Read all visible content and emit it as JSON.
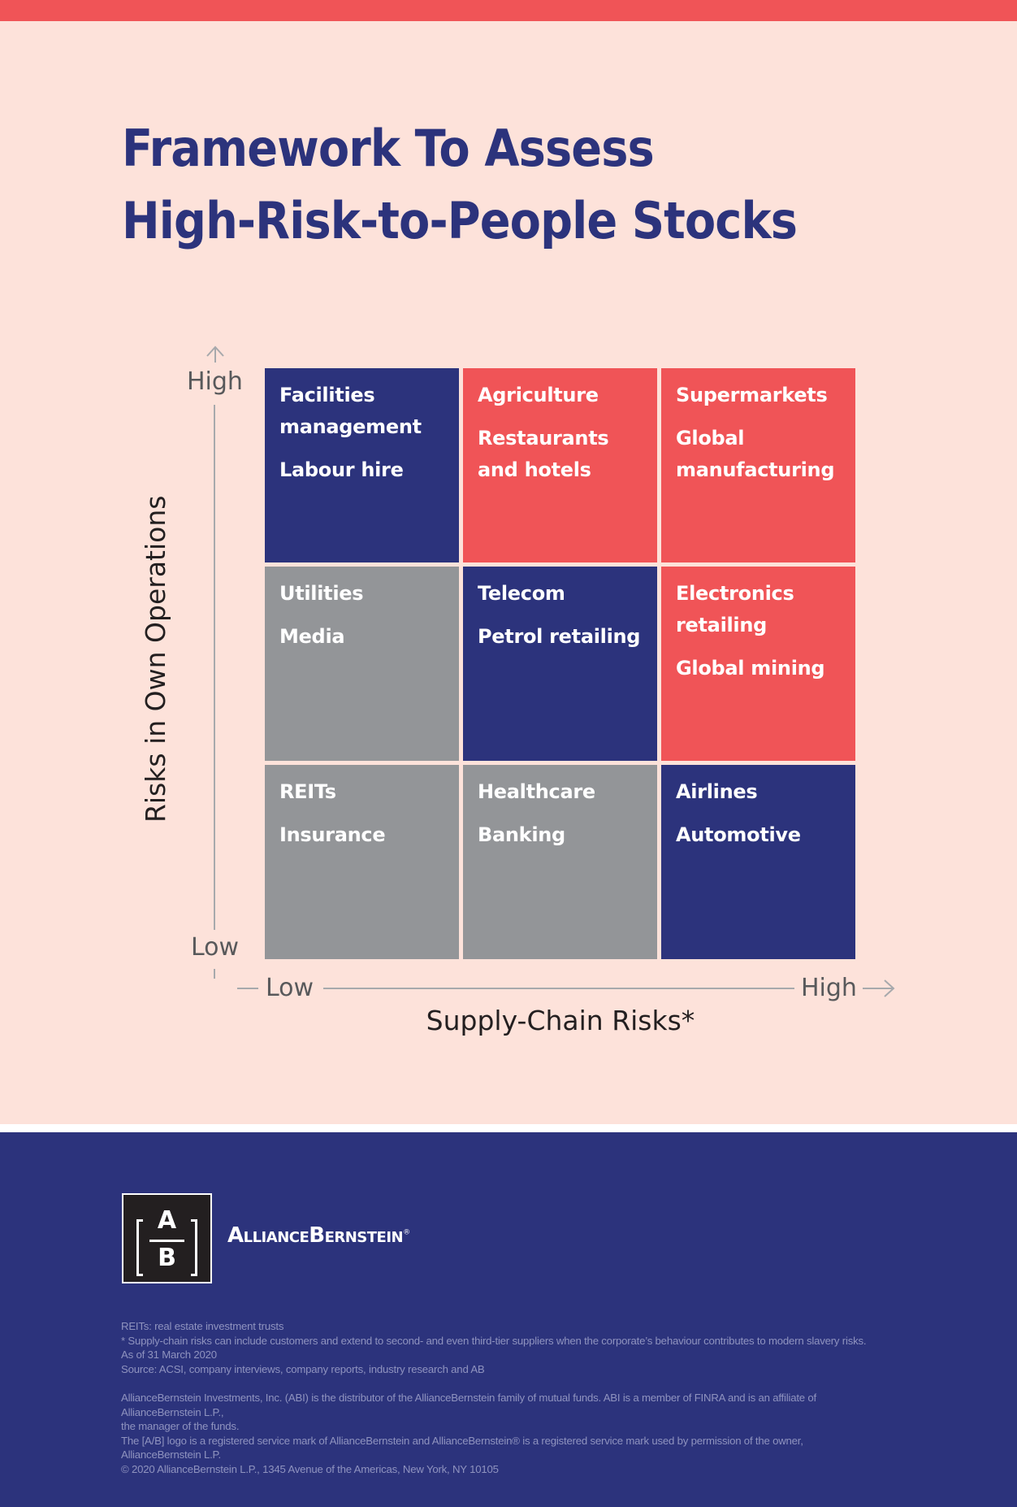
{
  "title": {
    "line1": "Framework To Assess",
    "line2": "High-Risk-to-People Stocks"
  },
  "colors": {
    "top_bar": "#f05457",
    "background": "#fde2da",
    "navy": "#2c337c",
    "high_risk_red": "#f05457",
    "medium_navy": "#2c337c",
    "low_grey": "#939598",
    "axis_grey": "#a7a9ac"
  },
  "y_axis": {
    "label": "Risks in Own Operations",
    "high": "High",
    "low": "Low"
  },
  "x_axis": {
    "label": "Supply-Chain Risks*",
    "low": "Low",
    "high": "High"
  },
  "matrix": {
    "rows": [
      {
        "own_operations_risk": "High",
        "cells": [
          {
            "supply_chain_risk": "Low",
            "color": "navy",
            "items": [
              "Facilities management",
              "Labour hire"
            ]
          },
          {
            "supply_chain_risk": "Medium",
            "color": "red",
            "items": [
              "Agriculture",
              "Restaurants and hotels"
            ]
          },
          {
            "supply_chain_risk": "High",
            "color": "red",
            "items": [
              "Supermarkets",
              "Global manufacturing"
            ]
          }
        ]
      },
      {
        "own_operations_risk": "Medium",
        "cells": [
          {
            "supply_chain_risk": "Low",
            "color": "grey",
            "items": [
              "Utilities",
              "Media"
            ]
          },
          {
            "supply_chain_risk": "Medium",
            "color": "navy",
            "items": [
              "Telecom",
              "Petrol retailing"
            ]
          },
          {
            "supply_chain_risk": "High",
            "color": "red",
            "items": [
              "Electronics retailing",
              "Global mining"
            ]
          }
        ]
      },
      {
        "own_operations_risk": "Low",
        "cells": [
          {
            "supply_chain_risk": "Low",
            "color": "grey",
            "items": [
              "REITs",
              "Insurance"
            ]
          },
          {
            "supply_chain_risk": "Medium",
            "color": "grey",
            "items": [
              "Healthcare",
              "Banking"
            ]
          },
          {
            "supply_chain_risk": "High",
            "color": "navy",
            "items": [
              "Airlines",
              "Automotive"
            ]
          }
        ]
      }
    ]
  },
  "logo": {
    "top_letter": "A",
    "bottom_letter": "B",
    "brand_name": "AllianceBernstein",
    "registered": "®"
  },
  "footnotes": {
    "notes": [
      "REITs: real estate investment trusts",
      "* Supply-chain risks can include customers and extend to second- and even third-tier suppliers when the corporate’s behaviour contributes to modern slavery risks.",
      "As of 31 March 2020",
      "Source: ACSI, company interviews, company reports, industry research and AB"
    ],
    "disclosures": [
      "AllianceBernstein Investments, Inc. (ABI) is the distributor of the AllianceBernstein family of mutual funds. ABI is a member of FINRA and is an affiliate of",
      "AllianceBernstein L.P.,",
      "the manager of the funds.",
      "The [A/B] logo is a registered service mark of AllianceBernstein and AllianceBernstein® is a registered service mark used by permission of the owner,",
      "AllianceBernstein L.P.",
      "© 2020 AllianceBernstein L.P., 1345 Avenue of the Americas, New York, NY 10105"
    ]
  }
}
